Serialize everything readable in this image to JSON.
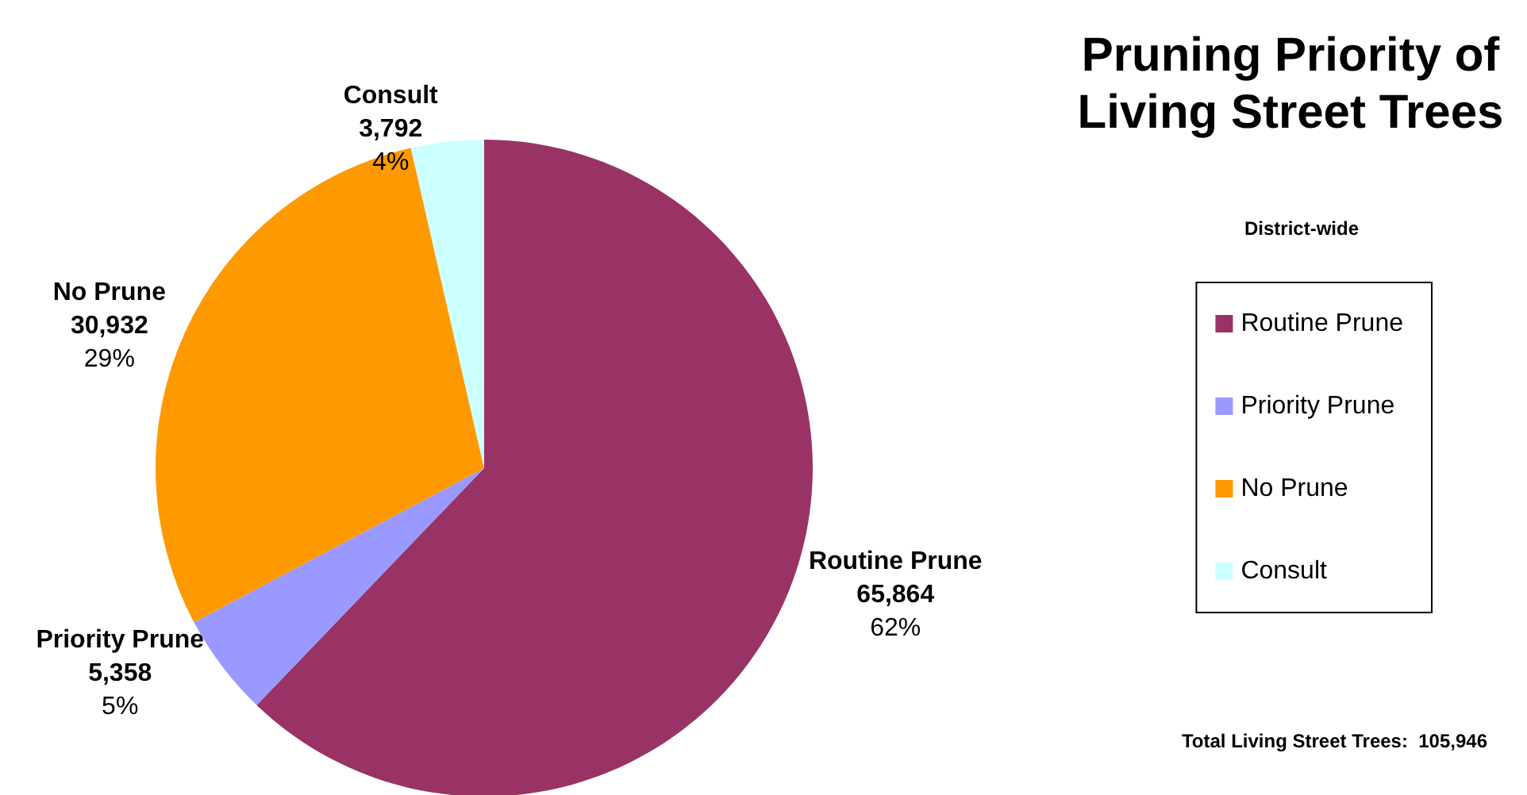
{
  "chart_data": {
    "type": "pie",
    "title": "Pruning Priority of\nLiving Street Trees",
    "subtitle": "District-wide",
    "categories": [
      "Routine Prune",
      "Priority Prune",
      "No Prune",
      "Consult"
    ],
    "values": [
      65864,
      5358,
      30932,
      3792
    ],
    "colors": [
      "#993366",
      "#9999ff",
      "#ff9900",
      "#ccffff"
    ],
    "value_labels": [
      "65,864\n62%",
      "5,358\n5%",
      "30,932\n29%",
      "3,792\n4%"
    ],
    "legend": "right",
    "annotations": [
      "Total Living Street Trees:  105,946"
    ]
  }
}
